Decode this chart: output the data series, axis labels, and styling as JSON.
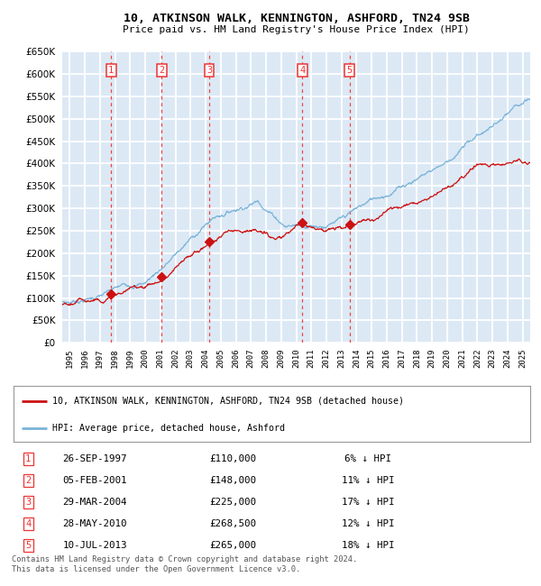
{
  "title": "10, ATKINSON WALK, KENNINGTON, ASHFORD, TN24 9SB",
  "subtitle": "Price paid vs. HM Land Registry's House Price Index (HPI)",
  "bg_color": "#dce9f5",
  "grid_color": "#ffffff",
  "hpi_color": "#7ab3d9",
  "price_color": "#cc1111",
  "vline_color": "#ee3333",
  "marker_color": "#cc1111",
  "sale_dates_num": [
    1997.74,
    2001.09,
    2004.24,
    2010.41,
    2013.53
  ],
  "sale_prices": [
    110000,
    148000,
    225000,
    268500,
    265000
  ],
  "sale_labels": [
    "1",
    "2",
    "3",
    "4",
    "5"
  ],
  "sale_dates_str": [
    "26-SEP-1997",
    "05-FEB-2001",
    "29-MAR-2004",
    "28-MAY-2010",
    "10-JUL-2013"
  ],
  "sale_pct": [
    "6%",
    "11%",
    "17%",
    "12%",
    "18%"
  ],
  "ylim_max": 650000,
  "xlim_start": 1994.5,
  "xlim_end": 2025.5,
  "legend_label_price": "10, ATKINSON WALK, KENNINGTON, ASHFORD, TN24 9SB (detached house)",
  "legend_label_hpi": "HPI: Average price, detached house, Ashford",
  "footer_text": "Contains HM Land Registry data © Crown copyright and database right 2024.\nThis data is licensed under the Open Government Licence v3.0."
}
